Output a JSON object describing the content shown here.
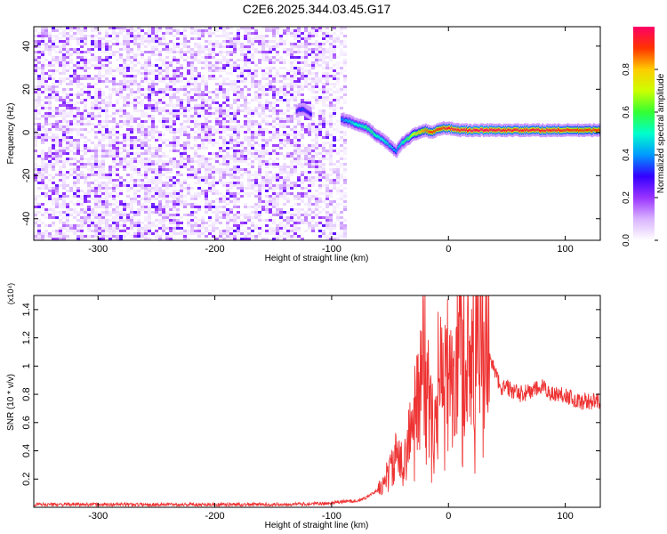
{
  "title": "C2E6.2025.344.03.45.G17",
  "chart_data": [
    {
      "type": "heatmap",
      "title": "C2E6.2025.344.03.45.G17",
      "xlabel": "Height of straight line (km)",
      "ylabel": "Frequency (Hz)",
      "xlim": [
        -355,
        130
      ],
      "ylim": [
        -50,
        49
      ],
      "x_ticks": [
        -300,
        -200,
        -100,
        0,
        100
      ],
      "y_ticks": [
        -40,
        -20,
        0,
        20,
        40
      ],
      "colorbar": {
        "label": "Normalized spectral amplitude",
        "range": [
          0,
          1
        ],
        "ticks": [
          "0.0",
          "0.2",
          "0.4",
          "0.6",
          "0.8"
        ],
        "colors": [
          "#ffffff",
          "#d9b3ff",
          "#9933ff",
          "#3300ff",
          "#0099ff",
          "#00ffcc",
          "#33ff33",
          "#ccff00",
          "#ffcc00",
          "#ff3300",
          "#ff0066"
        ]
      },
      "noise_region": {
        "x_range": [
          -355,
          -90
        ],
        "typical_amplitude": 0.15
      },
      "signal_track": {
        "x": [
          -130,
          -125,
          -120,
          -90,
          -85,
          -80,
          -75,
          -70,
          -65,
          -60,
          -55,
          -50,
          -45,
          -40,
          -35,
          -30,
          -25,
          -20,
          -15,
          -10,
          -5,
          0,
          10,
          30,
          50,
          70,
          90,
          110,
          130
        ],
        "frequency": [
          10,
          11,
          9,
          6,
          5,
          4,
          3,
          2,
          0,
          -2,
          -4,
          -6,
          -9,
          -5,
          -3,
          -1,
          0,
          1,
          0,
          1,
          2,
          2,
          1,
          1,
          1,
          1,
          1,
          1,
          1
        ],
        "amplitude": [
          0.3,
          0.35,
          0.3,
          0.4,
          0.45,
          0.5,
          0.5,
          0.55,
          0.55,
          0.5,
          0.5,
          0.45,
          0.4,
          0.5,
          0.6,
          0.7,
          0.8,
          0.85,
          0.9,
          0.9,
          0.9,
          0.95,
          0.95,
          1.0,
          0.95,
          0.95,
          0.95,
          0.9,
          0.9
        ]
      }
    },
    {
      "type": "line",
      "title": "",
      "xlabel": "Height of straight line (km)",
      "ylabel": "SNR (10 * v/v)",
      "y_scale_label": "(x10⁴)",
      "xlim": [
        -355,
        130
      ],
      "ylim": [
        0,
        1.5
      ],
      "x_ticks": [
        -300,
        -200,
        -100,
        0,
        100
      ],
      "y_ticks": [
        0.2,
        0.4,
        0.6,
        0.8,
        1.0,
        1.2,
        1.4
      ],
      "series": [
        {
          "name": "SNR",
          "color": "#ee3333",
          "x": [
            -355,
            -300,
            -250,
            -200,
            -150,
            -110,
            -100,
            -90,
            -75,
            -60,
            -50,
            -45,
            -40,
            -35,
            -30,
            -25,
            -20,
            -15,
            -10,
            -5,
            0,
            5,
            10,
            15,
            20,
            25,
            30,
            35,
            40,
            45,
            50,
            60,
            70,
            80,
            90,
            100,
            110,
            120,
            130
          ],
          "y": [
            0.02,
            0.02,
            0.02,
            0.02,
            0.02,
            0.025,
            0.03,
            0.04,
            0.05,
            0.12,
            0.25,
            0.35,
            0.3,
            0.45,
            0.6,
            0.95,
            1.05,
            0.6,
            0.95,
            0.85,
            1.0,
            0.9,
            1.2,
            1.05,
            1.12,
            1.15,
            1.18,
            1.1,
            0.95,
            0.85,
            0.85,
            0.8,
            0.82,
            0.85,
            0.8,
            0.8,
            0.75,
            0.75,
            0.75
          ]
        }
      ]
    }
  ]
}
